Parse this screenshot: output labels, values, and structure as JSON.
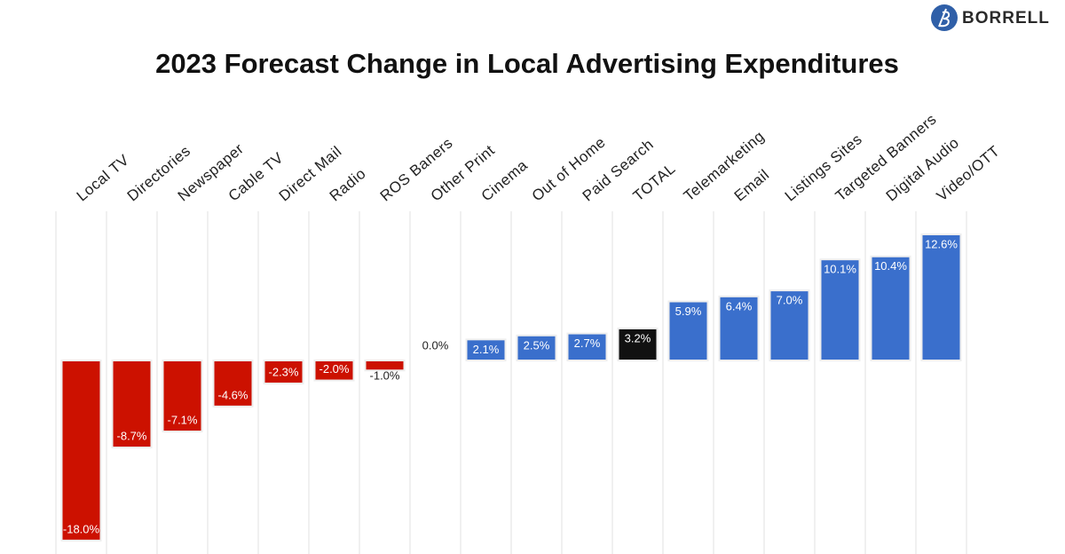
{
  "logo": "BORRELL",
  "chart_data": {
    "type": "bar",
    "title": "2023 Forecast Change in Local Advertising Expenditures",
    "categories": [
      "Local TV",
      "Directories",
      "Newspaper",
      "Cable TV",
      "Direct Mail",
      "Radio",
      "ROS Baners",
      "Other Print",
      "Cinema",
      "Out of Home",
      "Paid Search",
      "TOTAL",
      "Telemarketing",
      "Email",
      "Listings Sites",
      "Targeted Banners",
      "Digital Audio",
      "Video/OTT"
    ],
    "values": [
      -18.0,
      -8.7,
      -7.1,
      -4.6,
      -2.3,
      -2.0,
      -1.0,
      0.0,
      2.1,
      2.5,
      2.7,
      3.2,
      5.9,
      6.4,
      7.0,
      10.1,
      10.4,
      12.6
    ],
    "value_labels": [
      "-18.0%",
      "-8.7%",
      "-7.1%",
      "-4.6%",
      "-2.3%",
      "-2.0%",
      "-1.0%",
      "0.0%",
      "2.1%",
      "2.5%",
      "2.7%",
      "3.2%",
      "5.9%",
      "6.4%",
      "7.0%",
      "10.1%",
      "10.4%",
      "12.6%"
    ],
    "colors": [
      "#cc1100",
      "#cc1100",
      "#cc1100",
      "#cc1100",
      "#cc1100",
      "#cc1100",
      "#cc1100",
      "#cc1100",
      "#3a6fcc",
      "#3a6fcc",
      "#3a6fcc",
      "#111111",
      "#3a6fcc",
      "#3a6fcc",
      "#3a6fcc",
      "#3a6fcc",
      "#3a6fcc",
      "#3a6fcc"
    ],
    "grid": true
  }
}
